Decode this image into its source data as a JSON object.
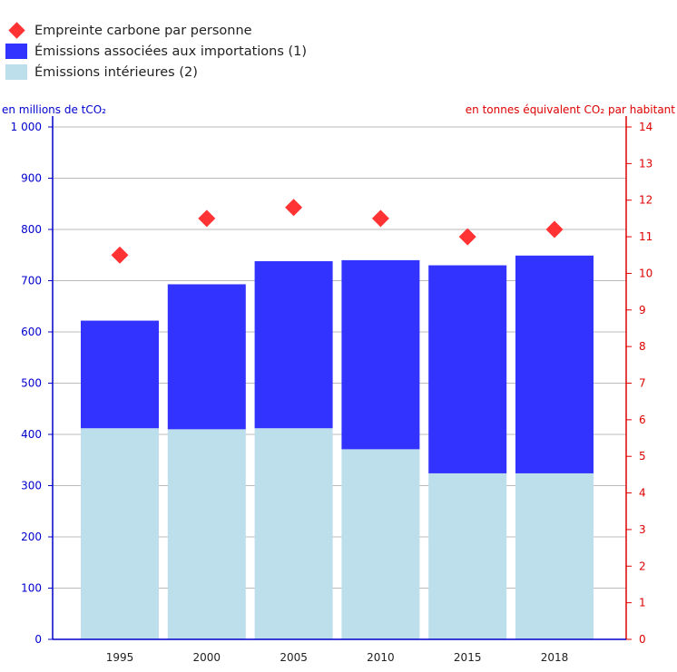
{
  "colors": {
    "imports": "#3333ff",
    "domestic": "#bcdfeb",
    "footprint": "#ff3333",
    "left_axis": "#0000cc",
    "right_axis": "#dd0000",
    "grid": "#bbbbbb"
  },
  "legend": [
    {
      "label": "Empreinte carbone par personne",
      "shape": "diamond",
      "color": "#ff3333"
    },
    {
      "label": "Émissions associées aux importations (1)",
      "shape": "square",
      "color": "#3333ff"
    },
    {
      "label": "Émissions intérieures (2)",
      "shape": "square",
      "color": "#bcdfeb"
    }
  ],
  "chart_data": {
    "type": "bar",
    "stacked": true,
    "categories": [
      "1995",
      "2000",
      "2005",
      "2010",
      "2015",
      "2018"
    ],
    "series": [
      {
        "name": "Émissions intérieures (2)",
        "axis": "left",
        "values": [
          412,
          410,
          412,
          371,
          324,
          324
        ]
      },
      {
        "name": "Émissions associées aux importations (1)",
        "axis": "left",
        "values": [
          210,
          283,
          326,
          369,
          406,
          425
        ]
      },
      {
        "name": "Empreinte carbone par personne",
        "axis": "right",
        "type": "scatter",
        "marker": "diamond",
        "values": [
          10.5,
          11.5,
          11.8,
          11.5,
          11.0,
          11.2
        ]
      }
    ],
    "left_axis": {
      "label": "en millions de tCO₂",
      "ylim": [
        0,
        1000
      ],
      "ticks": [
        0,
        100,
        200,
        300,
        400,
        500,
        600,
        700,
        800,
        900,
        1000
      ],
      "tick_labels": [
        "0",
        "100",
        "200",
        "300",
        "400",
        "500",
        "600",
        "700",
        "800",
        "900",
        "1 000"
      ]
    },
    "right_axis": {
      "label": "en tonnes équivalent CO₂ par habitant",
      "ylim": [
        0,
        14
      ],
      "ticks": [
        0,
        1,
        2,
        3,
        4,
        5,
        6,
        7,
        8,
        9,
        10,
        11,
        12,
        13,
        14
      ],
      "tick_labels": [
        "0",
        "1",
        "2",
        "3",
        "4",
        "5",
        "6",
        "7",
        "8",
        "9",
        "10",
        "11",
        "12",
        "13",
        "14"
      ]
    },
    "grid": true,
    "legend_position": "top-left"
  }
}
